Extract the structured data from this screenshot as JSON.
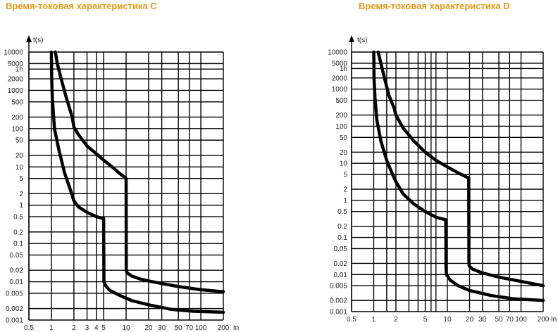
{
  "chart_data": [
    {
      "type": "line",
      "title": "Время-токовая характеристика C",
      "xlabel": "In",
      "ylabel": "t(s)",
      "x_scale": "log",
      "y_scale": "log",
      "xlim": [
        0.5,
        200
      ],
      "ylim": [
        0.001,
        10000
      ],
      "x_ticks": [
        {
          "v": 0.5,
          "label": "0.5"
        },
        {
          "v": 1,
          "label": "1"
        },
        {
          "v": 2,
          "label": "2"
        },
        {
          "v": 3,
          "label": "3"
        },
        {
          "v": 4,
          "label": "4"
        },
        {
          "v": 5,
          "label": "5"
        },
        {
          "v": 10,
          "label": "10"
        },
        {
          "v": 20,
          "label": "20"
        },
        {
          "v": 30,
          "label": "30"
        },
        {
          "v": 50,
          "label": "50"
        },
        {
          "v": 70,
          "label": "70"
        },
        {
          "v": 100,
          "label": "100"
        },
        {
          "v": 200,
          "label": "200"
        }
      ],
      "y_ticks": [
        {
          "v": 10000,
          "label": "10000"
        },
        {
          "v": 5000,
          "label": "5000"
        },
        {
          "v": 3600,
          "label": "1h"
        },
        {
          "v": 2000,
          "label": "2000"
        },
        {
          "v": 1000,
          "label": "1000"
        },
        {
          "v": 500,
          "label": "500"
        },
        {
          "v": 200,
          "label": "200"
        },
        {
          "v": 100,
          "label": "100"
        },
        {
          "v": 50,
          "label": "50"
        },
        {
          "v": 20,
          "label": "20"
        },
        {
          "v": 10,
          "label": "10"
        },
        {
          "v": 5,
          "label": "5"
        },
        {
          "v": 2,
          "label": "2"
        },
        {
          "v": 1,
          "label": "1"
        },
        {
          "v": 0.5,
          "label": "0.5"
        },
        {
          "v": 0.2,
          "label": "0.2"
        },
        {
          "v": 0.1,
          "label": "0.1"
        },
        {
          "v": 0.05,
          "label": "0.05"
        },
        {
          "v": 0.02,
          "label": "0.02"
        },
        {
          "v": 0.01,
          "label": "0.01"
        },
        {
          "v": 0.005,
          "label": "0.005"
        },
        {
          "v": 0.002,
          "label": "0.002"
        },
        {
          "v": 0.001,
          "label": "0.001"
        }
      ],
      "grid": true,
      "series": [
        {
          "x": [
            1.0,
            1.01,
            1.03,
            1.1,
            1.25,
            1.5,
            1.8,
            2.0,
            2.3,
            3.0,
            4.0,
            4.9,
            5.0,
            5.05,
            5.3,
            6.0,
            8.0,
            12.0,
            20.0,
            40.0,
            80.0,
            200.0
          ],
          "y": [
            10000,
            2000,
            600,
            100,
            30,
            7,
            2.5,
            1.3,
            0.9,
            0.65,
            0.5,
            0.45,
            0.45,
            0.01,
            0.008,
            0.006,
            0.0045,
            0.0032,
            0.0025,
            0.0019,
            0.0017,
            0.0016
          ]
        },
        {
          "x": [
            1.13,
            1.2,
            1.35,
            1.6,
            1.9,
            2.0,
            2.3,
            3.0,
            4.0,
            5.0,
            6.5,
            8.0,
            10.0,
            10.05,
            10.3,
            12.0,
            15.0,
            20.0,
            30.0,
            50.0,
            100.0,
            200.0
          ],
          "y": [
            10000,
            5000,
            2000,
            600,
            200,
            110,
            70,
            35,
            22,
            15,
            10,
            7,
            5,
            0.02,
            0.017,
            0.014,
            0.012,
            0.0105,
            0.009,
            0.0075,
            0.0062,
            0.0055
          ]
        }
      ]
    },
    {
      "type": "line",
      "title": "Время-токовая характеристика D",
      "xlabel": "In",
      "ylabel": "t(s)",
      "x_scale": "log",
      "y_scale": "log",
      "xlim": [
        0.5,
        200
      ],
      "ylim": [
        0.001,
        10000
      ],
      "x_ticks": [
        {
          "v": 0.5,
          "label": "0.5"
        },
        {
          "v": 1,
          "label": "1"
        },
        {
          "v": 2,
          "label": "2"
        },
        {
          "v": 5,
          "label": "5"
        },
        {
          "v": 10,
          "label": "10"
        },
        {
          "v": 20,
          "label": "20"
        },
        {
          "v": 30,
          "label": "30"
        },
        {
          "v": 50,
          "label": "50"
        },
        {
          "v": 70,
          "label": "70"
        },
        {
          "v": 100,
          "label": "100"
        },
        {
          "v": 200,
          "label": "200"
        }
      ],
      "x_grid": [
        0.5,
        1,
        1.5,
        2,
        3,
        4,
        5,
        6,
        7,
        10,
        20,
        30,
        50,
        70,
        100,
        200
      ],
      "y_ticks": [
        {
          "v": 10000,
          "label": "10000"
        },
        {
          "v": 5000,
          "label": "5000"
        },
        {
          "v": 3600,
          "label": "1h"
        },
        {
          "v": 2000,
          "label": "2000"
        },
        {
          "v": 1000,
          "label": "1000"
        },
        {
          "v": 500,
          "label": "500"
        },
        {
          "v": 200,
          "label": "200"
        },
        {
          "v": 100,
          "label": "100"
        },
        {
          "v": 50,
          "label": "50"
        },
        {
          "v": 20,
          "label": "20"
        },
        {
          "v": 10,
          "label": "10"
        },
        {
          "v": 5,
          "label": "5"
        },
        {
          "v": 2,
          "label": "2"
        },
        {
          "v": 1,
          "label": "1"
        },
        {
          "v": 0.5,
          "label": "0.5"
        },
        {
          "v": 0.2,
          "label": "0.2"
        },
        {
          "v": 0.1,
          "label": "0.1"
        },
        {
          "v": 0.05,
          "label": "0.05"
        },
        {
          "v": 0.02,
          "label": "0.02"
        },
        {
          "v": 0.01,
          "label": "0.01"
        },
        {
          "v": 0.005,
          "label": "0.005"
        },
        {
          "v": 0.002,
          "label": "0.002"
        },
        {
          "v": 0.001,
          "label": "0.001"
        }
      ],
      "grid": true,
      "series": [
        {
          "x": [
            1.0,
            1.01,
            1.04,
            1.1,
            1.25,
            1.5,
            1.8,
            2.0,
            2.5,
            3.5,
            5.0,
            7.0,
            9.5,
            9.6,
            9.7,
            11.0,
            14.0,
            20.0,
            40.0,
            80.0,
            200.0
          ],
          "y": [
            10000,
            2000,
            600,
            150,
            40,
            12,
            5,
            3.2,
            1.5,
            0.8,
            0.5,
            0.35,
            0.3,
            0.015,
            0.01,
            0.007,
            0.005,
            0.0037,
            0.0027,
            0.0022,
            0.002
          ]
        },
        {
          "x": [
            1.15,
            1.25,
            1.4,
            1.6,
            1.9,
            2.0,
            2.5,
            3.5,
            5.0,
            7.0,
            10.0,
            14.0,
            19.5,
            19.6,
            19.8,
            22.0,
            30.0,
            50.0,
            100.0,
            200.0
          ],
          "y": [
            10000,
            5000,
            2000,
            700,
            300,
            200,
            90,
            40,
            20,
            12,
            8,
            5.5,
            4,
            0.02,
            0.017,
            0.014,
            0.011,
            0.0085,
            0.0065,
            0.005
          ]
        }
      ]
    }
  ]
}
